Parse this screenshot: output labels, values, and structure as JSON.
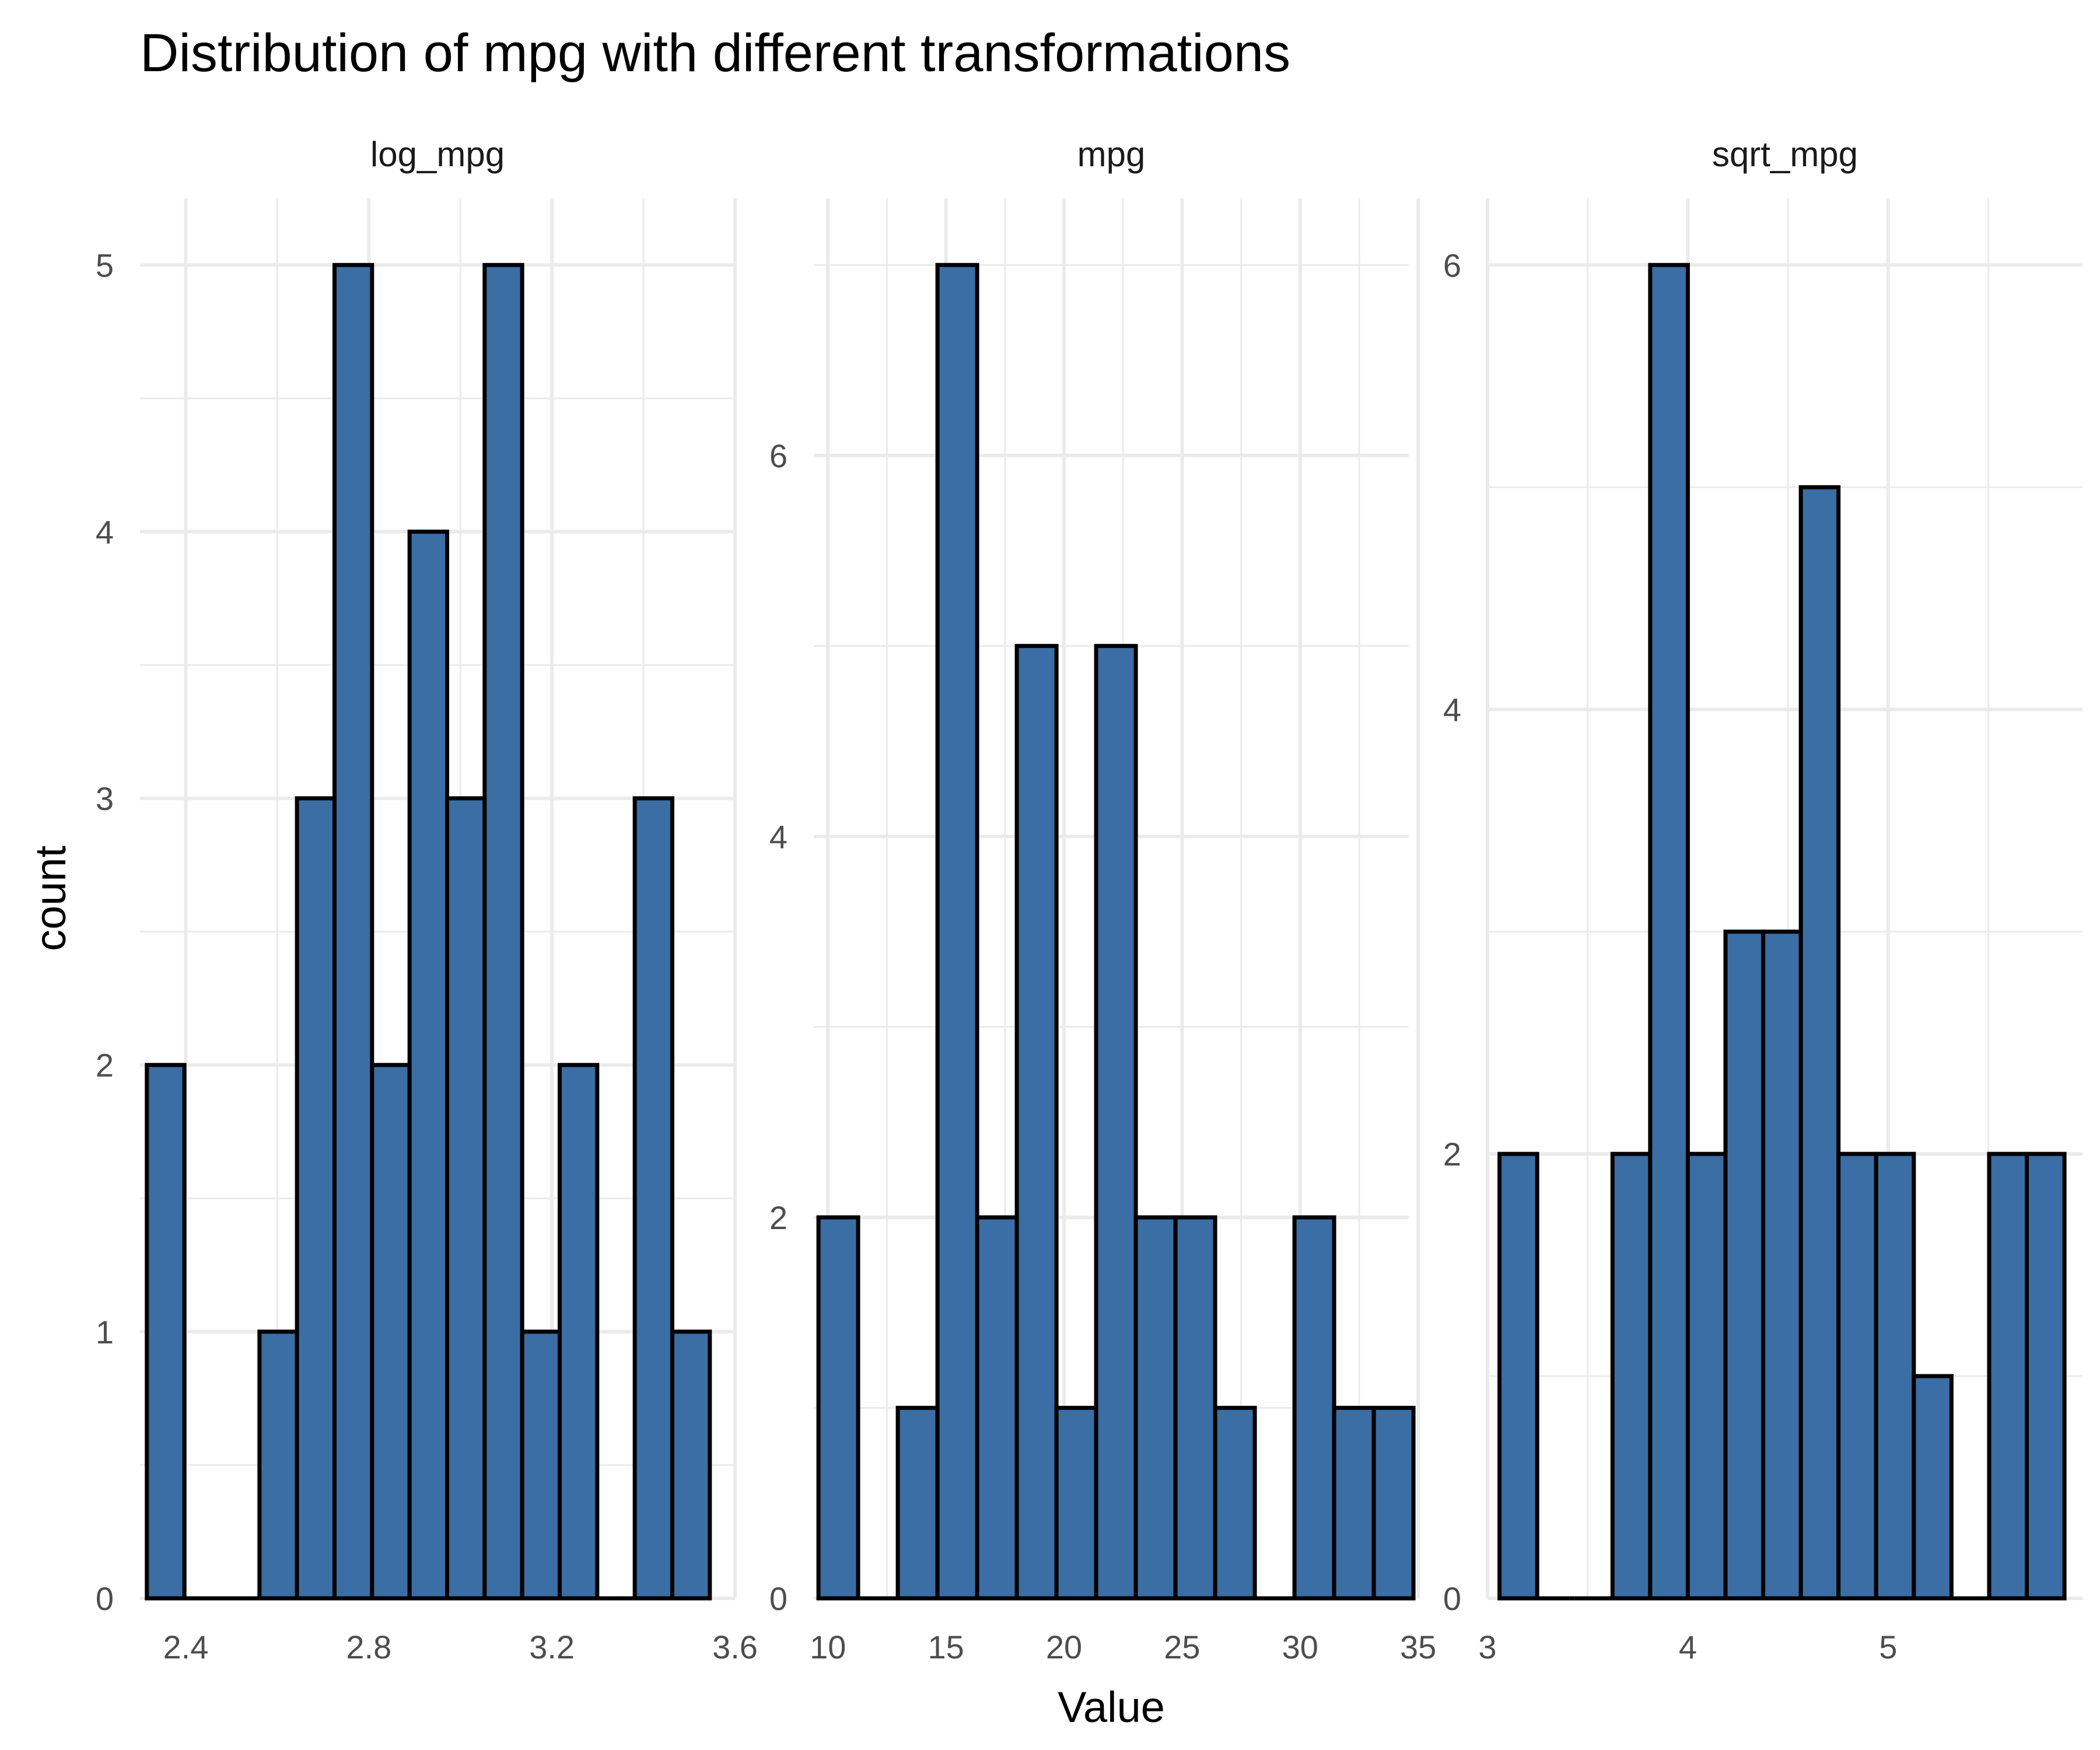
{
  "chart_data": {
    "type": "bar",
    "title": "Distribution of mpg with different transformations",
    "xlabel": "Value",
    "ylabel": "count",
    "bar_fill": "#3a6ea5",
    "bar_outline": "#000000",
    "grid": true,
    "facets": [
      {
        "name": "log_mpg",
        "xlim": [
          2.3,
          3.6
        ],
        "ylim": [
          0,
          5.25
        ],
        "x_ticks": [
          "2.4",
          "2.8",
          "3.2",
          "3.6"
        ],
        "x_tick_values": [
          2.4,
          2.8,
          3.2,
          3.6
        ],
        "y_ticks": [
          "0",
          "1",
          "2",
          "3",
          "4",
          "5"
        ],
        "y_tick_values": [
          0,
          1,
          2,
          3,
          4,
          5
        ],
        "bins": [
          {
            "start": 2.315,
            "end": 2.397,
            "count": 2
          },
          {
            "start": 2.397,
            "end": 2.479,
            "count": 0
          },
          {
            "start": 2.479,
            "end": 2.561,
            "count": 0
          },
          {
            "start": 2.561,
            "end": 2.643,
            "count": 1
          },
          {
            "start": 2.643,
            "end": 2.725,
            "count": 3
          },
          {
            "start": 2.725,
            "end": 2.807,
            "count": 5
          },
          {
            "start": 2.807,
            "end": 2.889,
            "count": 2
          },
          {
            "start": 2.889,
            "end": 2.971,
            "count": 4
          },
          {
            "start": 2.971,
            "end": 3.053,
            "count": 3
          },
          {
            "start": 3.053,
            "end": 3.135,
            "count": 5
          },
          {
            "start": 3.135,
            "end": 3.217,
            "count": 1
          },
          {
            "start": 3.217,
            "end": 3.299,
            "count": 2
          },
          {
            "start": 3.299,
            "end": 3.381,
            "count": 0
          },
          {
            "start": 3.381,
            "end": 3.463,
            "count": 3
          },
          {
            "start": 3.463,
            "end": 3.545,
            "count": 1
          }
        ]
      },
      {
        "name": "mpg",
        "xlim": [
          9.4,
          34.6
        ],
        "ylim": [
          0,
          7.35
        ],
        "x_ticks": [
          "10",
          "15",
          "20",
          "25",
          "30",
          "35"
        ],
        "x_tick_values": [
          10,
          15,
          20,
          25,
          30,
          35
        ],
        "y_ticks": [
          "0",
          "2",
          "4",
          "6"
        ],
        "y_tick_values": [
          0,
          2,
          4,
          6
        ],
        "bins": [
          {
            "start": 9.6,
            "end": 11.28,
            "count": 2
          },
          {
            "start": 11.28,
            "end": 12.96,
            "count": 0
          },
          {
            "start": 12.96,
            "end": 14.64,
            "count": 1
          },
          {
            "start": 14.64,
            "end": 16.32,
            "count": 7
          },
          {
            "start": 16.32,
            "end": 18.0,
            "count": 2
          },
          {
            "start": 18.0,
            "end": 19.68,
            "count": 5
          },
          {
            "start": 19.68,
            "end": 21.36,
            "count": 1
          },
          {
            "start": 21.36,
            "end": 23.04,
            "count": 5
          },
          {
            "start": 23.04,
            "end": 24.72,
            "count": 2
          },
          {
            "start": 24.72,
            "end": 26.4,
            "count": 2
          },
          {
            "start": 26.4,
            "end": 28.08,
            "count": 1
          },
          {
            "start": 28.08,
            "end": 29.76,
            "count": 0
          },
          {
            "start": 29.76,
            "end": 31.44,
            "count": 2
          },
          {
            "start": 31.44,
            "end": 33.12,
            "count": 1
          },
          {
            "start": 33.12,
            "end": 34.8,
            "count": 1
          }
        ]
      },
      {
        "name": "sqrt_mpg",
        "xlim": [
          3.0,
          5.97
        ],
        "ylim": [
          0,
          6.3
        ],
        "x_ticks": [
          "3",
          "4",
          "5"
        ],
        "x_tick_values": [
          3,
          4,
          5
        ],
        "y_ticks": [
          "0",
          "2",
          "4",
          "6"
        ],
        "y_tick_values": [
          0,
          2,
          4,
          6
        ],
        "bins": [
          {
            "start": 3.06,
            "end": 3.248,
            "count": 2
          },
          {
            "start": 3.248,
            "end": 3.436,
            "count": 0
          },
          {
            "start": 3.436,
            "end": 3.624,
            "count": 0
          },
          {
            "start": 3.624,
            "end": 3.812,
            "count": 2
          },
          {
            "start": 3.812,
            "end": 4.0,
            "count": 6
          },
          {
            "start": 4.0,
            "end": 4.188,
            "count": 2
          },
          {
            "start": 4.188,
            "end": 4.376,
            "count": 3
          },
          {
            "start": 4.376,
            "end": 4.564,
            "count": 3
          },
          {
            "start": 4.564,
            "end": 4.752,
            "count": 5
          },
          {
            "start": 4.752,
            "end": 4.94,
            "count": 2
          },
          {
            "start": 4.94,
            "end": 5.128,
            "count": 2
          },
          {
            "start": 5.128,
            "end": 5.316,
            "count": 1
          },
          {
            "start": 5.316,
            "end": 5.504,
            "count": 0
          },
          {
            "start": 5.504,
            "end": 5.692,
            "count": 2
          },
          {
            "start": 5.692,
            "end": 5.88,
            "count": 2
          }
        ]
      }
    ]
  }
}
